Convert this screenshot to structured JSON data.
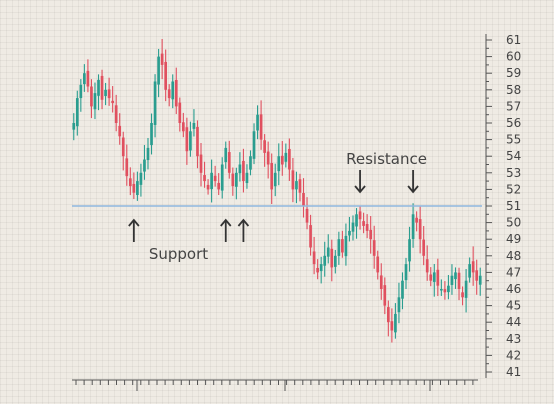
{
  "chart_data": {
    "type": "candlestick",
    "title": "",
    "xlabel": "",
    "ylabel": "",
    "ylim": [
      41,
      61
    ],
    "y_ticks": [
      41,
      42,
      43,
      44,
      45,
      46,
      47,
      48,
      49,
      50,
      51,
      52,
      53,
      54,
      55,
      56,
      57,
      58,
      59,
      60,
      61
    ],
    "y_axis_position": "right",
    "grid": true,
    "up_color": "#2a9d8f",
    "down_color": "#e0505f",
    "level_line": {
      "value": 51,
      "color": "#8fb8df"
    },
    "annotations": [
      {
        "label": "Support",
        "arrows": [
          {
            "index": 17,
            "direction": "up"
          },
          {
            "index": 43,
            "direction": "up"
          },
          {
            "index": 48,
            "direction": "up"
          }
        ]
      },
      {
        "label": "Resistance",
        "arrows": [
          {
            "index": 81,
            "direction": "down"
          },
          {
            "index": 96,
            "direction": "down"
          }
        ]
      }
    ],
    "series": [
      {
        "values": [
          56.0,
          57.5,
          58.3,
          59.0,
          58.2,
          57.0,
          57.8,
          58.6,
          57.4,
          58.0,
          57.5,
          57.2,
          56.0,
          55.2,
          54.0,
          52.8,
          52.2,
          51.8,
          52.5,
          53.0,
          53.8,
          54.5,
          56.0,
          58.5,
          60.0,
          59.5,
          58.0,
          57.5,
          58.5,
          57.0,
          56.0,
          55.5,
          54.3,
          55.5,
          56.0,
          54.0,
          53.0,
          52.5,
          52.0,
          53.0,
          52.5,
          52.0,
          53.5,
          54.5,
          53.0,
          52.2,
          53.0,
          53.5,
          52.5,
          53.0,
          54.0,
          55.5,
          56.5,
          55.0,
          54.2,
          53.5,
          52.0,
          53.0,
          54.0,
          53.5,
          54.2,
          53.2,
          52.0,
          52.5,
          51.8,
          51.0,
          50.0,
          48.5,
          47.5,
          47.0,
          47.5,
          48.0,
          48.5,
          47.3,
          48.0,
          49.0,
          48.2,
          49.2,
          49.5,
          50.0,
          50.5,
          50.2,
          49.8,
          49.5,
          49.0,
          48.0,
          47.0,
          46.0,
          45.0,
          44.0,
          43.5,
          44.5,
          45.5,
          46.5,
          47.5,
          49.0,
          50.5,
          50.0,
          49.0,
          48.0,
          47.0,
          46.5,
          47.0,
          46.2,
          46.0,
          45.8,
          46.2,
          46.8,
          47.0,
          46.0,
          45.5,
          46.5,
          47.5,
          47.0,
          46.5,
          46.8
        ]
      }
    ]
  }
}
